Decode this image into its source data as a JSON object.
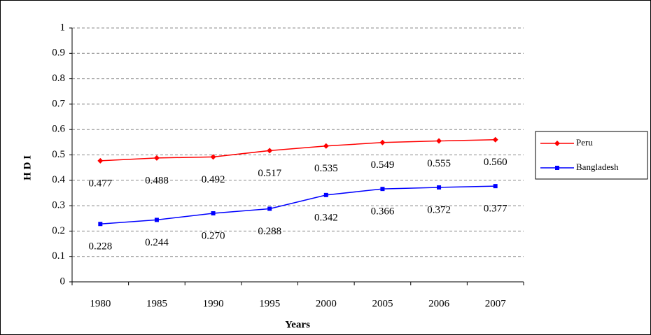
{
  "chart_data": {
    "type": "line",
    "x_label": "Years",
    "y_label": "H D I",
    "categories": [
      "1980",
      "1985",
      "1990",
      "1995",
      "2000",
      "2005",
      "2006",
      "2007"
    ],
    "series": [
      {
        "name": "Peru",
        "color": "#ff0000",
        "marker": "diamond",
        "values": [
          0.477,
          0.488,
          0.492,
          0.517,
          0.535,
          0.549,
          0.555,
          0.56
        ],
        "value_labels": [
          "0.477",
          "0.488",
          "0.492",
          "0.517",
          "0.535",
          "0.549",
          "0.555",
          "0.560"
        ]
      },
      {
        "name": "Bangladesh",
        "color": "#0000ff",
        "marker": "square",
        "values": [
          0.228,
          0.244,
          0.27,
          0.288,
          0.342,
          0.366,
          0.372,
          0.377
        ],
        "value_labels": [
          "0.228",
          "0.244",
          "0.270",
          "0.288",
          "0.342",
          "0.366",
          "0.372",
          "0.377"
        ]
      }
    ],
    "ylim": [
      0,
      1
    ],
    "yticks": [
      0,
      0.1,
      0.2,
      0.3,
      0.4,
      0.5,
      0.6,
      0.7,
      0.8,
      0.9,
      1
    ],
    "grid": true,
    "legend": "right"
  }
}
